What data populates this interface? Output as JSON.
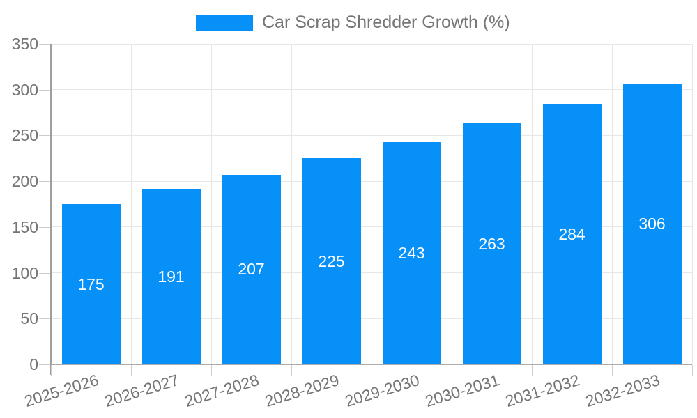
{
  "chart_data": {
    "type": "bar",
    "title": "Car Scrap Shredder Growth (%)",
    "categories": [
      "2025-2026",
      "2026-2027",
      "2027-2028",
      "2028-2029",
      "2029-2030",
      "2030-2031",
      "2031-2032",
      "2032-2033"
    ],
    "values": [
      175,
      191,
      207,
      225,
      243,
      263,
      284,
      306
    ],
    "xlabel": "",
    "ylabel": "",
    "ylim": [
      0,
      350
    ],
    "ytick_step": 50,
    "ytick_labels": [
      "0",
      "50",
      "100",
      "150",
      "200",
      "250",
      "300",
      "350"
    ],
    "grid": true,
    "legend_position": "top-center",
    "legend_label": "Car Scrap Shredder Growth (%)",
    "bar_labels_inside": true,
    "colors": {
      "bar": "#0690f8",
      "bar_label": "#ffffff",
      "axis_text": "#757575",
      "grid_line": "#e6e6e6",
      "axis_line": "#9e9e9e"
    }
  }
}
